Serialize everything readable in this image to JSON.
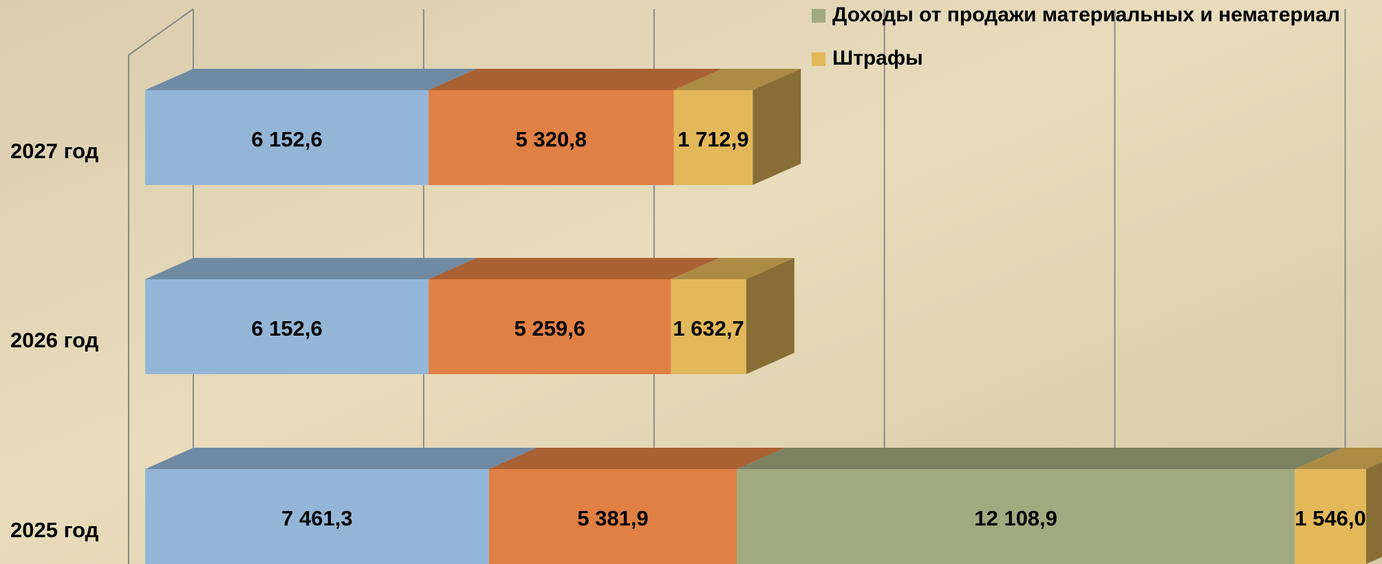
{
  "chart_data": {
    "type": "bar",
    "orientation": "horizontal",
    "stacked": true,
    "categories": [
      "2027 год",
      "2026 год",
      "2025 год"
    ],
    "series": [
      {
        "color": "#94b6d6",
        "values": [
          6152.6,
          6152.6,
          7461.3
        ],
        "value_labels": [
          "6 152,6",
          "6 152,6",
          "7 461,3"
        ]
      },
      {
        "color": "#e08045",
        "values": [
          5320.8,
          5259.6,
          5381.9
        ],
        "value_labels": [
          "5 320,8",
          "5 259,6",
          "5 381,9"
        ]
      },
      {
        "name": "Доходы от продажи материальных и нематериал",
        "color": "#a2aa80",
        "values": [
          null,
          null,
          12108.9
        ],
        "value_labels": [
          null,
          null,
          "12 108,9"
        ]
      },
      {
        "name": "Штрафы",
        "color": "#e2b85a",
        "values": [
          1712.9,
          1632.7,
          1546.0
        ],
        "value_labels": [
          "1 712,9",
          "1 632,7",
          "1 546,0"
        ]
      }
    ],
    "xlim": [
      0,
      25800
    ],
    "xticks": [
      0,
      5000,
      10000,
      15000,
      20000,
      25000
    ],
    "grid": true
  }
}
